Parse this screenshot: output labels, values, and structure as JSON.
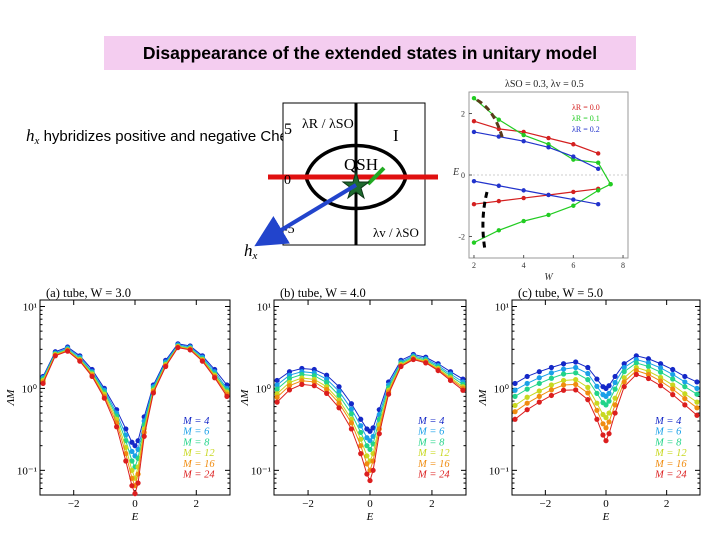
{
  "slide": {
    "title": "Disappearance of the extended states in unitary model",
    "hx_symbol": "h",
    "hx_subscript": "x",
    "hx_text": "hybridizes positive and negative Chern number states"
  },
  "phase_diagram": {
    "axis_label_top": "λR / λSO",
    "axis_label_bottom": "λv / λSO",
    "region_qsh": "QSH",
    "region_i": "I",
    "tick_5": "5",
    "tick_0": "0",
    "tick_m5": "-5",
    "hx_label": "h",
    "hx_sub": "x"
  },
  "chart_data": [
    {
      "type": "line",
      "title": "λSO = 0.3, λv = 0.5",
      "xlabel": "W",
      "ylabel": "E",
      "xlim": [
        1.8,
        8.2
      ],
      "ylim": [
        -2.7,
        2.7
      ],
      "xticks": [
        "2",
        "4",
        "6",
        "8"
      ],
      "yticks": [
        "2",
        "0",
        "-2"
      ],
      "legend_position": "top-right",
      "series": [
        {
          "name": "λR = 0.0",
          "color": "#d42020",
          "x": [
            2,
            3,
            4,
            5,
            6,
            7
          ],
          "upper": [
            1.75,
            1.5,
            1.4,
            1.2,
            1.0,
            0.7
          ],
          "lower": [
            -0.95,
            -0.85,
            -0.75,
            -0.65,
            -0.55,
            -0.45
          ]
        },
        {
          "name": "λR = 0.1",
          "color": "#22cc22",
          "x": [
            2,
            3,
            4,
            5,
            6,
            7,
            7.5
          ],
          "upper": [
            2.5,
            1.8,
            1.3,
            1.0,
            0.5,
            0.4,
            -0.3
          ],
          "lower": [
            -2.2,
            -1.8,
            -1.5,
            -1.3,
            -1.0,
            -0.5,
            -0.3
          ]
        },
        {
          "name": "λR = 0.2",
          "color": "#2233cc",
          "x": [
            2,
            3,
            4,
            5,
            6,
            7
          ],
          "upper": [
            1.4,
            1.25,
            1.1,
            0.9,
            0.6,
            0.2
          ],
          "lower": [
            -0.2,
            -0.35,
            -0.5,
            -0.65,
            -0.8,
            -0.95
          ]
        }
      ]
    },
    {
      "type": "line",
      "title": "(a)  tube, W = 3.0",
      "xlabel": "E",
      "ylabel": "ΛM",
      "yscale": "log",
      "xlim": [
        -3.1,
        3.1
      ],
      "ylim": [
        0.05,
        12
      ],
      "xticks": [
        "−2",
        "0",
        "2"
      ],
      "yticks": [
        "10¹",
        "10⁰",
        "10⁻¹"
      ],
      "x": [
        -3.0,
        -2.6,
        -2.2,
        -1.8,
        -1.4,
        -1.0,
        -0.6,
        -0.3,
        -0.1,
        0.0,
        0.1,
        0.3,
        0.6,
        1.0,
        1.4,
        1.8,
        2.2,
        2.6,
        3.0
      ],
      "series": [
        {
          "name": "M = 4",
          "color": "#1428c8",
          "values": [
            1.4,
            2.8,
            3.2,
            2.5,
            1.7,
            1.0,
            0.55,
            0.32,
            0.22,
            0.2,
            0.23,
            0.45,
            1.1,
            2.2,
            3.5,
            3.3,
            2.5,
            1.7,
            1.1
          ]
        },
        {
          "name": "M = 6",
          "color": "#1aa0e8",
          "values": [
            1.35,
            2.7,
            3.1,
            2.4,
            1.6,
            0.95,
            0.5,
            0.27,
            0.17,
            0.15,
            0.18,
            0.4,
            1.05,
            2.1,
            3.4,
            3.2,
            2.4,
            1.6,
            1.0
          ]
        },
        {
          "name": "M = 8",
          "color": "#22d48a",
          "values": [
            1.3,
            2.65,
            3.0,
            2.3,
            1.55,
            0.9,
            0.46,
            0.23,
            0.13,
            0.11,
            0.14,
            0.36,
            1.0,
            2.0,
            3.3,
            3.1,
            2.3,
            1.5,
            0.95
          ]
        },
        {
          "name": "M = 12",
          "color": "#c8d820",
          "values": [
            1.25,
            2.6,
            2.95,
            2.25,
            1.5,
            0.85,
            0.42,
            0.19,
            0.1,
            0.08,
            0.11,
            0.32,
            0.95,
            1.95,
            3.25,
            3.05,
            2.25,
            1.45,
            0.9
          ]
        },
        {
          "name": "M = 16",
          "color": "#f08c10",
          "values": [
            1.2,
            2.55,
            2.9,
            2.2,
            1.45,
            0.8,
            0.38,
            0.16,
            0.08,
            0.065,
            0.09,
            0.29,
            0.92,
            1.9,
            3.2,
            3.0,
            2.2,
            1.4,
            0.85
          ]
        },
        {
          "name": "M = 24",
          "color": "#dc1e1e",
          "values": [
            1.15,
            2.5,
            2.85,
            2.15,
            1.4,
            0.76,
            0.34,
            0.13,
            0.065,
            0.052,
            0.07,
            0.26,
            0.88,
            1.85,
            3.15,
            2.95,
            2.15,
            1.35,
            0.8
          ]
        }
      ]
    },
    {
      "type": "line",
      "title": "(b)  tube, W = 4.0",
      "xlabel": "E",
      "ylabel": "ΛM",
      "yscale": "log",
      "xlim": [
        -3.1,
        3.1
      ],
      "ylim": [
        0.05,
        12
      ],
      "xticks": [
        "−2",
        "0",
        "2"
      ],
      "yticks": [
        "10¹",
        "10⁰",
        "10⁻¹"
      ],
      "x": [
        -3.0,
        -2.6,
        -2.2,
        -1.8,
        -1.4,
        -1.0,
        -0.6,
        -0.3,
        -0.1,
        0.0,
        0.1,
        0.3,
        0.6,
        1.0,
        1.4,
        1.8,
        2.2,
        2.6,
        3.0
      ],
      "series": [
        {
          "name": "M = 4",
          "color": "#1428c8",
          "values": [
            1.25,
            1.6,
            1.75,
            1.7,
            1.45,
            1.05,
            0.65,
            0.42,
            0.32,
            0.3,
            0.33,
            0.55,
            1.2,
            2.2,
            2.6,
            2.4,
            2.0,
            1.6,
            1.3
          ]
        },
        {
          "name": "M = 6",
          "color": "#1aa0e8",
          "values": [
            1.1,
            1.45,
            1.6,
            1.55,
            1.3,
            0.92,
            0.56,
            0.35,
            0.25,
            0.23,
            0.26,
            0.48,
            1.1,
            2.1,
            2.5,
            2.3,
            1.9,
            1.5,
            1.2
          ]
        },
        {
          "name": "M = 8",
          "color": "#22d48a",
          "values": [
            0.98,
            1.32,
            1.48,
            1.43,
            1.18,
            0.82,
            0.49,
            0.29,
            0.2,
            0.18,
            0.21,
            0.42,
            1.02,
            2.02,
            2.42,
            2.22,
            1.82,
            1.42,
            1.12
          ]
        },
        {
          "name": "M = 12",
          "color": "#c8d820",
          "values": [
            0.86,
            1.18,
            1.34,
            1.29,
            1.05,
            0.72,
            0.42,
            0.24,
            0.15,
            0.13,
            0.16,
            0.36,
            0.95,
            1.95,
            2.35,
            2.15,
            1.75,
            1.35,
            1.05
          ]
        },
        {
          "name": "M = 16",
          "color": "#f08c10",
          "values": [
            0.78,
            1.08,
            1.24,
            1.2,
            0.97,
            0.66,
            0.38,
            0.2,
            0.12,
            0.1,
            0.13,
            0.32,
            0.9,
            1.9,
            2.3,
            2.1,
            1.7,
            1.3,
            1.0
          ]
        },
        {
          "name": "M = 24",
          "color": "#dc1e1e",
          "values": [
            0.68,
            0.96,
            1.12,
            1.08,
            0.87,
            0.58,
            0.32,
            0.16,
            0.09,
            0.075,
            0.1,
            0.28,
            0.85,
            1.85,
            2.25,
            2.05,
            1.65,
            1.25,
            0.95
          ]
        }
      ]
    },
    {
      "type": "line",
      "title": "(c)  tube, W = 5.0",
      "xlabel": "E",
      "ylabel": "ΛM",
      "yscale": "log",
      "xlim": [
        -3.1,
        3.1
      ],
      "ylim": [
        0.05,
        12
      ],
      "xticks": [
        "−2",
        "0",
        "2"
      ],
      "yticks": [
        "10¹",
        "10⁰",
        "10⁻¹"
      ],
      "x": [
        -3.0,
        -2.6,
        -2.2,
        -1.8,
        -1.4,
        -1.0,
        -0.6,
        -0.3,
        -0.1,
        0.0,
        0.1,
        0.3,
        0.6,
        1.0,
        1.4,
        1.8,
        2.2,
        2.6,
        3.0
      ],
      "series": [
        {
          "name": "M = 4",
          "color": "#1428c8",
          "values": [
            1.15,
            1.4,
            1.6,
            1.8,
            2.0,
            2.1,
            1.8,
            1.3,
            1.05,
            1.0,
            1.08,
            1.4,
            2.0,
            2.5,
            2.3,
            2.0,
            1.7,
            1.4,
            1.2
          ]
        },
        {
          "name": "M = 6",
          "color": "#1aa0e8",
          "values": [
            0.95,
            1.15,
            1.35,
            1.55,
            1.72,
            1.8,
            1.52,
            1.06,
            0.84,
            0.8,
            0.87,
            1.18,
            1.8,
            2.25,
            2.05,
            1.78,
            1.48,
            1.2,
            1.0
          ]
        },
        {
          "name": "M = 8",
          "color": "#22d48a",
          "values": [
            0.8,
            0.98,
            1.15,
            1.33,
            1.5,
            1.55,
            1.28,
            0.87,
            0.67,
            0.63,
            0.7,
            0.98,
            1.6,
            2.05,
            1.85,
            1.58,
            1.3,
            1.05,
            0.85
          ]
        },
        {
          "name": "M = 12",
          "color": "#c8d820",
          "values": [
            0.62,
            0.78,
            0.93,
            1.1,
            1.25,
            1.28,
            1.03,
            0.66,
            0.48,
            0.44,
            0.5,
            0.76,
            1.35,
            1.8,
            1.62,
            1.36,
            1.1,
            0.86,
            0.68
          ]
        },
        {
          "name": "M = 16",
          "color": "#f08c10",
          "values": [
            0.52,
            0.66,
            0.8,
            0.96,
            1.1,
            1.12,
            0.88,
            0.54,
            0.37,
            0.33,
            0.39,
            0.63,
            1.2,
            1.65,
            1.48,
            1.23,
            0.98,
            0.75,
            0.58
          ]
        },
        {
          "name": "M = 24",
          "color": "#dc1e1e",
          "values": [
            0.42,
            0.55,
            0.68,
            0.82,
            0.95,
            0.96,
            0.73,
            0.42,
            0.27,
            0.23,
            0.28,
            0.5,
            1.05,
            1.48,
            1.32,
            1.08,
            0.84,
            0.63,
            0.47
          ]
        }
      ]
    }
  ]
}
